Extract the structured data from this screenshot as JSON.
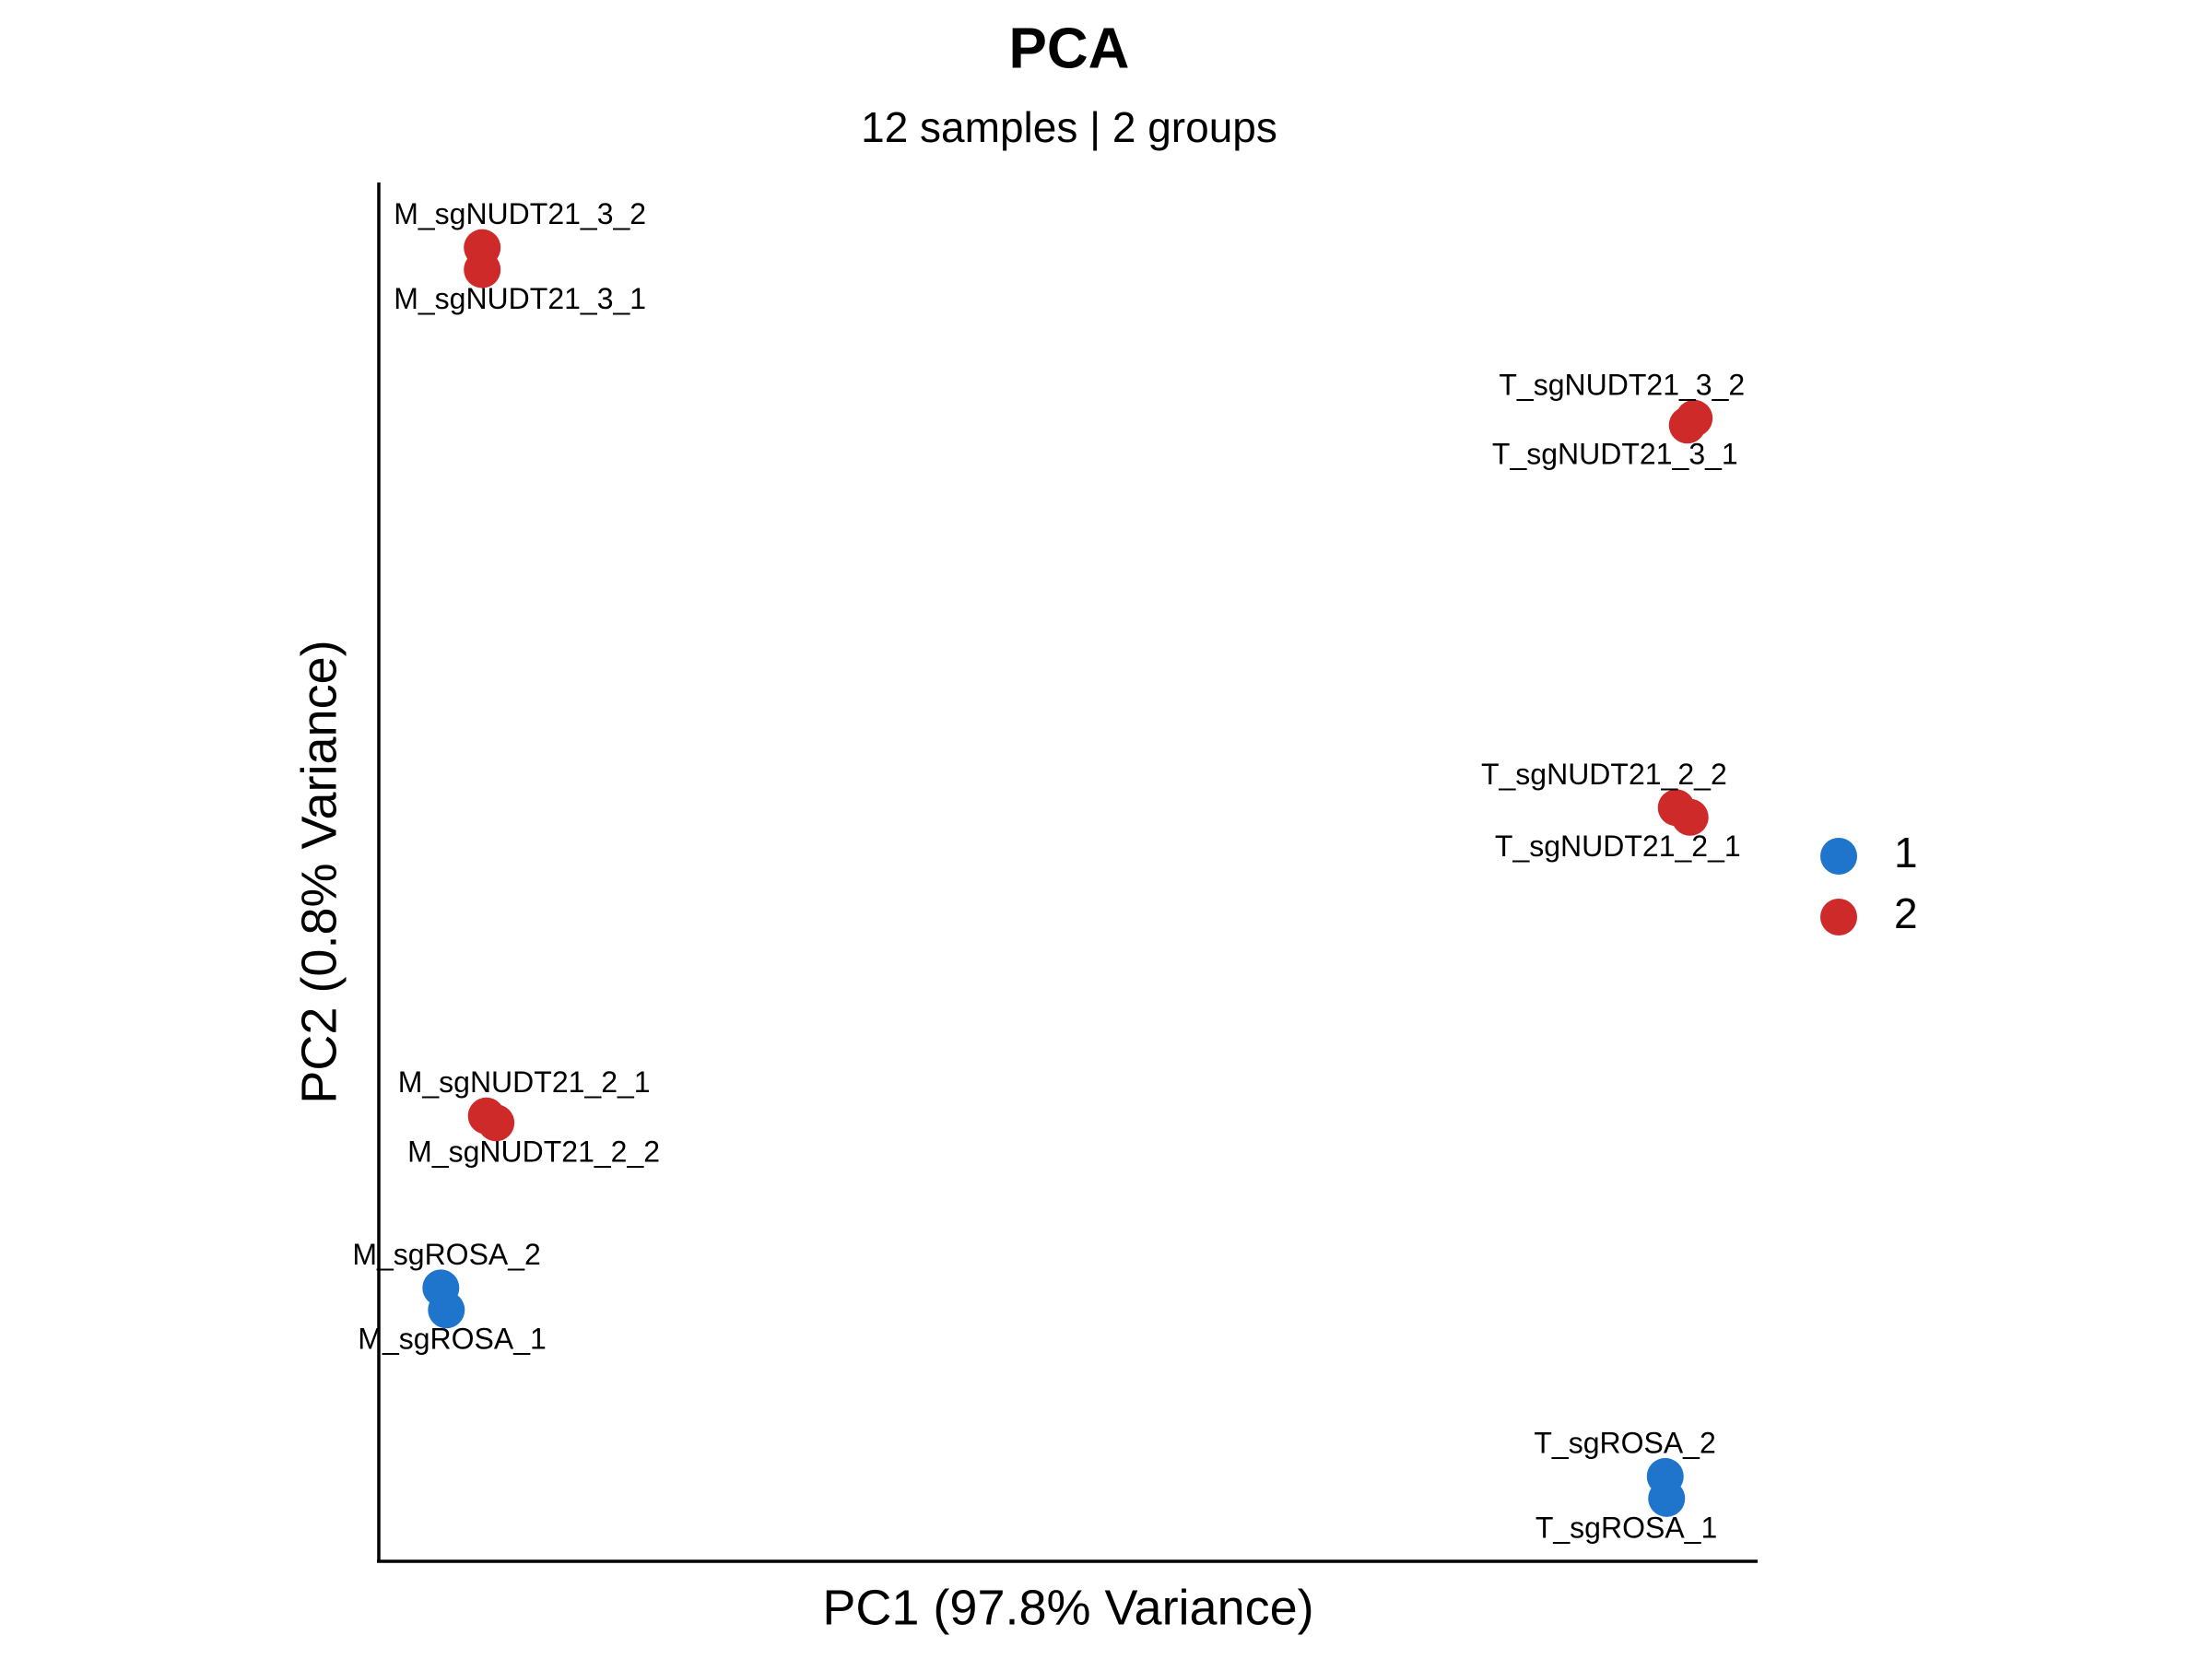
{
  "chart_data": {
    "type": "scatter",
    "title": "PCA",
    "subtitle": "12 samples | 2 groups",
    "x_label": "PC1 (97.8% Variance)",
    "y_label": "PC2 (0.8% Variance)",
    "xlim": [
      0,
      100
    ],
    "ylim": [
      0,
      100
    ],
    "grid": false,
    "legend": "right",
    "series": [
      {
        "name": "1",
        "color": "#1f74cc",
        "labels": [
          "M_sgROSA_2",
          "M_sgROSA_1",
          "T_sgROSA_2",
          "T_sgROSA_1"
        ],
        "x": [
          4.5,
          4.9,
          93.3,
          93.4
        ],
        "values": [
          19.8,
          18.2,
          6.1,
          4.5
        ]
      },
      {
        "name": "2",
        "color": "#cf2a2a",
        "labels": [
          "M_sgNUDT21_3_2",
          "M_sgNUDT21_3_1",
          "T_sgNUDT21_3_2",
          "T_sgNUDT21_3_1",
          "T_sgNUDT21_2_2",
          "T_sgNUDT21_2_1",
          "M_sgNUDT21_2_1",
          "M_sgNUDT21_2_2"
        ],
        "x": [
          7.5,
          7.5,
          95.4,
          94.9,
          94.1,
          95.1,
          7.8,
          8.5
        ],
        "values": [
          95.4,
          93.8,
          83.0,
          82.5,
          54.7,
          54.0,
          32.3,
          31.8
        ]
      }
    ]
  }
}
